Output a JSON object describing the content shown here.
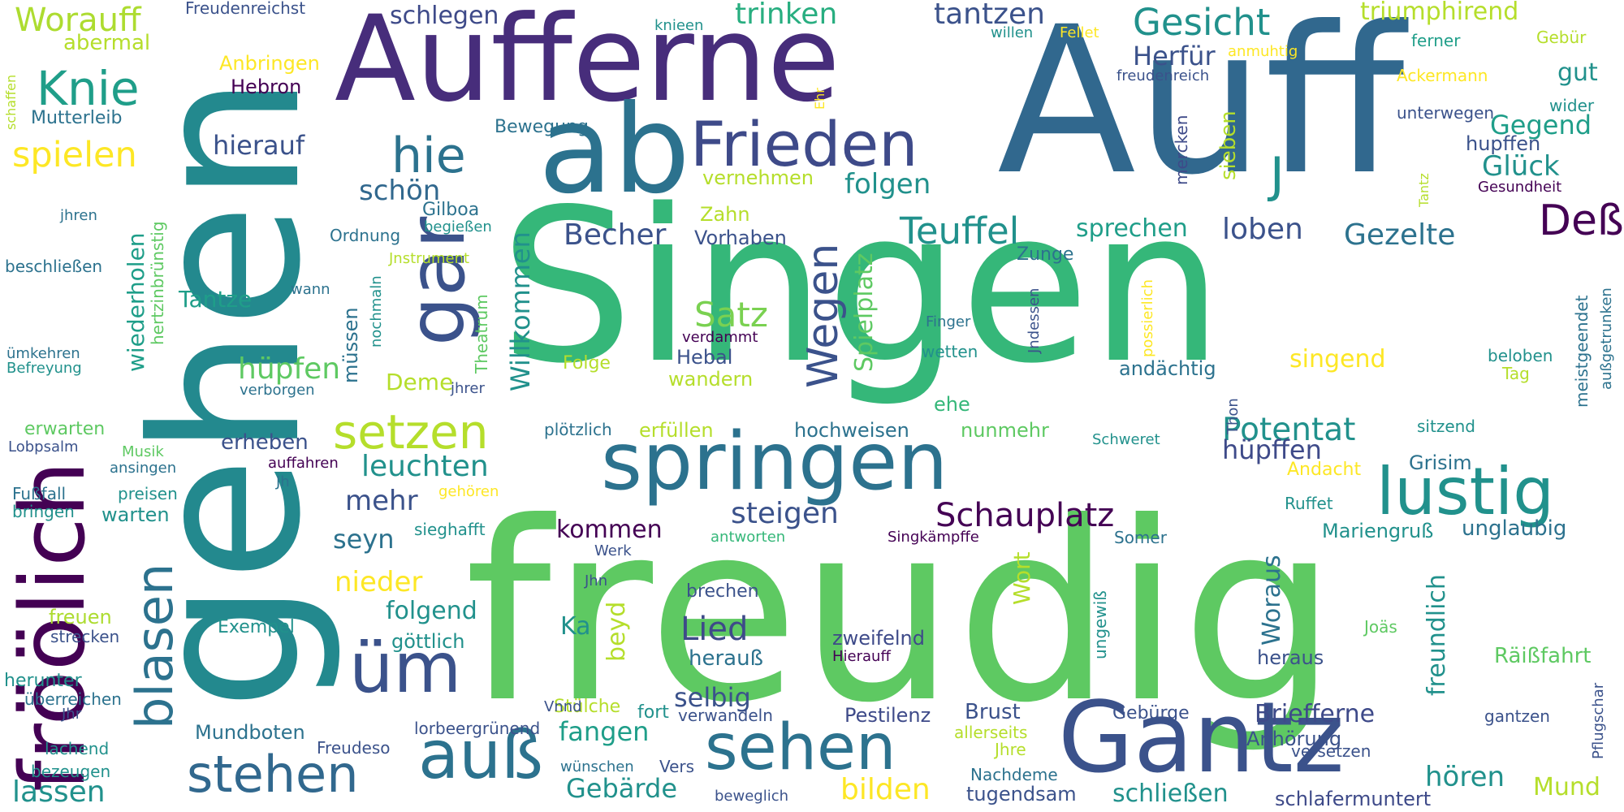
{
  "palette": {
    "dark_purple": "#440154",
    "indigo": "#472d7b",
    "blue": "#3b528b",
    "steel_blue": "#2c728e",
    "teal": "#21918c",
    "sea_green": "#28ae80",
    "green": "#5ec962",
    "lime": "#addc30",
    "yellow": "#fde725"
  },
  "words": [
    {
      "text": "Singen",
      "color": "#35b779"
    },
    {
      "text": "freudig",
      "color": "#5ec962"
    },
    {
      "text": "Auff",
      "color": "#31688e"
    },
    {
      "text": "gehen",
      "color": "#23898e"
    },
    {
      "text": "Aufferne",
      "color": "#472d7b"
    },
    {
      "text": "fröölich",
      "color": "#440154"
    },
    {
      "text": "ab",
      "color": "#2c728e"
    },
    {
      "text": "Gantz",
      "color": "#3b528b"
    },
    {
      "text": "springen",
      "color": "#2c728e"
    },
    {
      "text": "Frieden",
      "color": "#3e4a89"
    },
    {
      "text": "gar",
      "color": "#3b528b"
    },
    {
      "text": "sehen",
      "color": "#2c728e"
    },
    {
      "text": "lustig",
      "color": "#21918c"
    },
    {
      "text": "auß",
      "color": "#2c728e"
    },
    {
      "text": "üm",
      "color": "#3b528b"
    },
    {
      "text": "blasen",
      "color": "#2c728e"
    },
    {
      "text": "stehen",
      "color": "#31688e"
    },
    {
      "text": "setzen",
      "color": "#b5de2b"
    },
    {
      "text": "Wegen",
      "color": "#3b528b"
    },
    {
      "text": "hie",
      "color": "#2c728e"
    },
    {
      "text": "Knie",
      "color": "#1f9e89"
    },
    {
      "text": "Deß",
      "color": "#440154"
    },
    {
      "text": "Gesicht",
      "color": "#21918c"
    },
    {
      "text": "Schauplatz",
      "color": "#440154"
    },
    {
      "text": "Teuffel",
      "color": "#21918c"
    },
    {
      "text": "Worauff",
      "color": "#addc30"
    },
    {
      "text": "spielen",
      "color": "#fde725"
    },
    {
      "text": "Potentat",
      "color": "#21918c"
    },
    {
      "text": "Satz",
      "color": "#7ad151"
    },
    {
      "text": "Lied",
      "color": "#3e4a89"
    },
    {
      "text": "Becher",
      "color": "#3b528b"
    },
    {
      "text": "trinken",
      "color": "#28ae80"
    },
    {
      "text": "tantzen",
      "color": "#3b528b"
    },
    {
      "text": "steigen",
      "color": "#3b528b"
    },
    {
      "text": "hüpfen",
      "color": "#5ec962"
    },
    {
      "text": "leuchten",
      "color": "#21918c"
    },
    {
      "text": "schlegen",
      "color": "#3e4a89"
    },
    {
      "text": "Herfür",
      "color": "#3b528b"
    },
    {
      "text": "Gegend",
      "color": "#1f9e89"
    },
    {
      "text": "Glück",
      "color": "#21918c"
    },
    {
      "text": "loben",
      "color": "#3b528b"
    },
    {
      "text": "Gezelte",
      "color": "#2c728e"
    },
    {
      "text": "Spielplatz",
      "color": "#5ec962"
    },
    {
      "text": "folgen",
      "color": "#21918c"
    },
    {
      "text": "schön",
      "color": "#31688e"
    },
    {
      "text": "hierauf",
      "color": "#3b528b"
    },
    {
      "text": "sprechen",
      "color": "#1f9e89"
    },
    {
      "text": "Willkommen",
      "color": "#21918c"
    },
    {
      "text": "mehr",
      "color": "#3b528b"
    },
    {
      "text": "seyn",
      "color": "#2c728e"
    },
    {
      "text": "nieder",
      "color": "#fde725"
    },
    {
      "text": "folgend",
      "color": "#21918c"
    },
    {
      "text": "beyd",
      "color": "#b5de2b"
    },
    {
      "text": "Ka",
      "color": "#21918c"
    },
    {
      "text": "kommen",
      "color": "#440154"
    },
    {
      "text": "fangen",
      "color": "#1f9e89"
    },
    {
      "text": "selbig",
      "color": "#3b528b"
    },
    {
      "text": "herauß",
      "color": "#2c728e"
    },
    {
      "text": "hüpffen",
      "color": "#3e4a89"
    },
    {
      "text": "Woraus",
      "color": "#2c728e"
    },
    {
      "text": "freundlich",
      "color": "#21918c"
    },
    {
      "text": "Brust",
      "color": "#3b528b"
    },
    {
      "text": "Briefferne",
      "color": "#3e4a89"
    },
    {
      "text": "Mariengruß",
      "color": "#21918c"
    },
    {
      "text": "unglaubig",
      "color": "#2c728e"
    },
    {
      "text": "hören",
      "color": "#21918c"
    },
    {
      "text": "Mund",
      "color": "#b5de2b"
    },
    {
      "text": "bilden",
      "color": "#fde725"
    },
    {
      "text": "Gebärde",
      "color": "#21918c"
    },
    {
      "text": "lassen",
      "color": "#21918c"
    },
    {
      "text": "schließen",
      "color": "#21918c"
    },
    {
      "text": "singend",
      "color": "#fde725"
    },
    {
      "text": "andächtig",
      "color": "#2c728e"
    },
    {
      "text": "hupffen",
      "color": "#3b528b"
    },
    {
      "text": "gut",
      "color": "#21918c"
    },
    {
      "text": "sieben",
      "color": "#b5de2b"
    },
    {
      "text": "Zahn",
      "color": "#b5de2b"
    },
    {
      "text": "Vorhaben",
      "color": "#3b528b"
    },
    {
      "text": "vernehmen",
      "color": "#b5de2b"
    },
    {
      "text": "Bewegung",
      "color": "#2c728e"
    },
    {
      "text": "Ordnung",
      "color": "#2c728e"
    },
    {
      "text": "Tantze",
      "color": "#1f9e89"
    },
    {
      "text": "wiederholen",
      "color": "#1f9e89"
    },
    {
      "text": "müssen",
      "color": "#2c728e"
    },
    {
      "text": "Deme",
      "color": "#b5de2b"
    },
    {
      "text": "erheben",
      "color": "#3b528b"
    },
    {
      "text": "hochweisen",
      "color": "#2c728e"
    },
    {
      "text": "nunmehr",
      "color": "#5ec962"
    },
    {
      "text": "Zunge",
      "color": "#2c728e"
    },
    {
      "text": "Finger",
      "color": "#2c728e"
    },
    {
      "text": "wetten",
      "color": "#21918c"
    },
    {
      "text": "Wort",
      "color": "#b5de2b"
    },
    {
      "text": "Hebal",
      "color": "#3b528b"
    },
    {
      "text": "Folge",
      "color": "#b5de2b"
    },
    {
      "text": "wandern",
      "color": "#b5de2b"
    },
    {
      "text": "erfüllen",
      "color": "#b5de2b"
    },
    {
      "text": "plötzlich",
      "color": "#2c728e"
    },
    {
      "text": "ehe",
      "color": "#35b779"
    },
    {
      "text": "Exempel",
      "color": "#21918c"
    },
    {
      "text": "göttlich",
      "color": "#21918c"
    },
    {
      "text": "warten",
      "color": "#21918c"
    },
    {
      "text": "brechen",
      "color": "#3b528b"
    },
    {
      "text": "zweifelnd",
      "color": "#3e4a89"
    },
    {
      "text": "Hierauff",
      "color": "#440154"
    },
    {
      "text": "Stülche",
      "color": "#b5de2b"
    },
    {
      "text": "fort",
      "color": "#21918c"
    },
    {
      "text": "verwandeln",
      "color": "#3b528b"
    },
    {
      "text": "Pestilenz",
      "color": "#3e4a89"
    },
    {
      "text": "Mundboten",
      "color": "#2c728e"
    },
    {
      "text": "Freudeso",
      "color": "#3b528b"
    },
    {
      "text": "lorbeergrünend",
      "color": "#3b528b"
    },
    {
      "text": "wünschen",
      "color": "#2c728e"
    },
    {
      "text": "Vers",
      "color": "#3b528b"
    },
    {
      "text": "Gebürge",
      "color": "#3b528b"
    },
    {
      "text": "allerseits",
      "color": "#b5de2b"
    },
    {
      "text": "Anhörung",
      "color": "#3b528b"
    },
    {
      "text": "Jhre",
      "color": "#b5de2b"
    },
    {
      "text": "Nachdeme",
      "color": "#2c728e"
    },
    {
      "text": "tugendsam",
      "color": "#3b528b"
    },
    {
      "text": "beweglich",
      "color": "#3b528b"
    },
    {
      "text": "schlafermuntert",
      "color": "#3e4a89"
    },
    {
      "text": "versetzen",
      "color": "#3b528b"
    },
    {
      "text": "gantzen",
      "color": "#3b528b"
    },
    {
      "text": "Pflugschar",
      "color": "#3b528b"
    },
    {
      "text": "Räißfahrt",
      "color": "#5ec962"
    },
    {
      "text": "Joäs",
      "color": "#5ec962"
    },
    {
      "text": "heraus",
      "color": "#3b528b"
    },
    {
      "text": "ungewiß",
      "color": "#21918c"
    },
    {
      "text": "Somer",
      "color": "#2c728e"
    },
    {
      "text": "Ruffet",
      "color": "#21918c"
    },
    {
      "text": "Andacht",
      "color": "#fde725"
    },
    {
      "text": "Grisim",
      "color": "#2c728e"
    },
    {
      "text": "sitzend",
      "color": "#21918c"
    },
    {
      "text": "Thon",
      "color": "#3b528b"
    },
    {
      "text": "Schweret",
      "color": "#21918c"
    },
    {
      "text": "Tag",
      "color": "#b5de2b"
    },
    {
      "text": "beloben",
      "color": "#21918c"
    },
    {
      "text": "meistgeendet",
      "color": "#2c728e"
    },
    {
      "text": "außgetrunken",
      "color": "#2c728e"
    },
    {
      "text": "wider",
      "color": "#21918c"
    },
    {
      "text": "Gesundheit",
      "color": "#440154"
    },
    {
      "text": "Tantz",
      "color": "#b5de2b"
    },
    {
      "text": "unterwegen",
      "color": "#3b528b"
    },
    {
      "text": "freudenreich",
      "color": "#3b528b"
    },
    {
      "text": "Ackermann",
      "color": "#fde725"
    },
    {
      "text": "ferner",
      "color": "#1f9e89"
    },
    {
      "text": "Gebür",
      "color": "#b5de2b"
    },
    {
      "text": "triumphirend",
      "color": "#b5de2b"
    },
    {
      "text": "anmuhtig",
      "color": "#fde725"
    },
    {
      "text": "willen",
      "color": "#21918c"
    },
    {
      "text": "Fellet",
      "color": "#fde725"
    },
    {
      "text": "knieen",
      "color": "#21918c"
    },
    {
      "text": "Freudenreichst",
      "color": "#3b528b"
    },
    {
      "text": "abermal",
      "color": "#b5de2b"
    },
    {
      "text": "Anbringen",
      "color": "#fde725"
    },
    {
      "text": "Hebron",
      "color": "#440154"
    },
    {
      "text": "Mutterleib",
      "color": "#2c728e"
    },
    {
      "text": "schaffen",
      "color": "#b5de2b"
    },
    {
      "text": "Ehr",
      "color": "#fde725"
    },
    {
      "text": "mercken",
      "color": "#3e4a89"
    },
    {
      "text": "hertzinbrünstig",
      "color": "#5ec962"
    },
    {
      "text": "Gilboa",
      "color": "#2c728e"
    },
    {
      "text": "begießen",
      "color": "#21918c"
    },
    {
      "text": "jhren",
      "color": "#2c728e"
    },
    {
      "text": "beschließen",
      "color": "#2c728e"
    },
    {
      "text": "Jnstrument",
      "color": "#b5de2b"
    },
    {
      "text": "wann",
      "color": "#2c728e"
    },
    {
      "text": "nochmaln",
      "color": "#21918c"
    },
    {
      "text": "Theatrum",
      "color": "#5ec962"
    },
    {
      "text": "verdammt",
      "color": "#440154"
    },
    {
      "text": "Jndessen",
      "color": "#3b528b"
    },
    {
      "text": "possierlich",
      "color": "#fde725"
    },
    {
      "text": "ümkehren",
      "color": "#2c728e"
    },
    {
      "text": "Befreyung",
      "color": "#21918c"
    },
    {
      "text": "verborgen",
      "color": "#2c728e"
    },
    {
      "text": "jhrer",
      "color": "#3b528b"
    },
    {
      "text": "erwarten",
      "color": "#5ec962"
    },
    {
      "text": "Lobpsalm",
      "color": "#3b528b"
    },
    {
      "text": "Musik",
      "color": "#5ec962"
    },
    {
      "text": "ansingen",
      "color": "#2c728e"
    },
    {
      "text": "auffahren",
      "color": "#440154"
    },
    {
      "text": "Jh",
      "color": "#2c728e"
    },
    {
      "text": "preisen",
      "color": "#21918c"
    },
    {
      "text": "Fußfall",
      "color": "#2c728e"
    },
    {
      "text": "bringen",
      "color": "#21918c"
    },
    {
      "text": "gehören",
      "color": "#fde725"
    },
    {
      "text": "sieghafft",
      "color": "#21918c"
    },
    {
      "text": "antworten",
      "color": "#35b779"
    },
    {
      "text": "Singkämpffe",
      "color": "#440154"
    },
    {
      "text": "Werk",
      "color": "#3b528b"
    },
    {
      "text": "Jhn",
      "color": "#3b528b"
    },
    {
      "text": "Vnnd",
      "color": "#3b528b"
    },
    {
      "text": "freuen",
      "color": "#addc30"
    },
    {
      "text": "strecken",
      "color": "#3b528b"
    },
    {
      "text": "herunter",
      "color": "#21918c"
    },
    {
      "text": "überreichen",
      "color": "#2c728e"
    },
    {
      "text": "Jhr",
      "color": "#3b528b"
    },
    {
      "text": "lachend",
      "color": "#21918c"
    },
    {
      "text": "bezeugen",
      "color": "#21918c"
    },
    {
      "text": "J",
      "color": "#21918c"
    }
  ]
}
